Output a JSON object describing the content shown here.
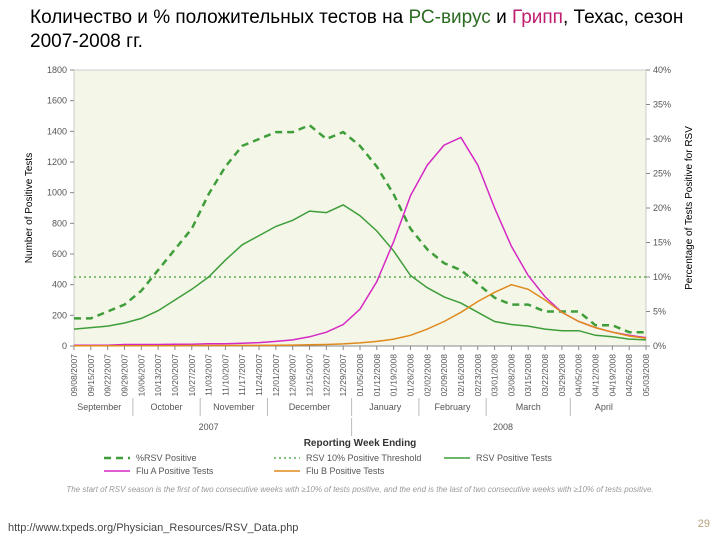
{
  "title_prefix": "Количество и % положительных  тестов на ",
  "title_rsv": "РС-вирус",
  "title_and": " и ",
  "title_flu": "Грипп",
  "title_suffix": ", Техас, сезон 2007-2008 гг.",
  "chart": {
    "type": "line",
    "background_color": "#f4f6e8",
    "plot_border_color": "#cccccc",
    "grid_color": "#dddddd",
    "axis_color": "#888888",
    "y_left": {
      "label": "Number of Positive Tests",
      "min": 0,
      "max": 1800,
      "step": 200,
      "label_fontsize": 10
    },
    "y_right": {
      "label": "Percentage of Tests Positive for RSV",
      "min": 0,
      "max": 40,
      "step": 5,
      "suffix": "%",
      "label_fontsize": 10
    },
    "x_dates": [
      "09/08/2007",
      "09/15/2007",
      "09/22/2007",
      "09/29/2007",
      "10/06/2007",
      "10/13/2007",
      "10/20/2007",
      "10/27/2007",
      "11/03/2007",
      "11/10/2007",
      "11/17/2007",
      "11/24/2007",
      "12/01/2007",
      "12/08/2007",
      "12/15/2007",
      "12/22/2007",
      "12/29/2007",
      "01/05/2008",
      "01/12/2008",
      "01/19/2008",
      "01/26/2008",
      "02/02/2008",
      "02/09/2008",
      "02/16/2008",
      "02/23/2008",
      "03/01/2008",
      "03/08/2008",
      "03/15/2008",
      "03/22/2008",
      "03/29/2008",
      "04/05/2008",
      "04/12/2008",
      "04/19/2008",
      "04/26/2008",
      "05/03/2008"
    ],
    "months": [
      {
        "label": "September",
        "span": [
          0,
          3
        ]
      },
      {
        "label": "October",
        "span": [
          4,
          7
        ]
      },
      {
        "label": "November",
        "span": [
          8,
          11
        ]
      },
      {
        "label": "December",
        "span": [
          12,
          16
        ]
      },
      {
        "label": "January",
        "span": [
          17,
          20
        ]
      },
      {
        "label": "February",
        "span": [
          21,
          24
        ]
      },
      {
        "label": "March",
        "span": [
          25,
          29
        ]
      },
      {
        "label": "April",
        "span": [
          30,
          33
        ]
      }
    ],
    "years": [
      {
        "label": "2007",
        "span": [
          0,
          16
        ]
      },
      {
        "label": "2008",
        "span": [
          17,
          34
        ]
      }
    ],
    "x_axis_label": "Reporting Week Ending",
    "threshold": {
      "value_pct": 10,
      "label": "RSV 10% Positive Threshold",
      "color": "#3f9e3a",
      "dash": "2,3"
    },
    "series": [
      {
        "id": "pct_rsv",
        "label": "%RSV Positive",
        "axis": "right",
        "color": "#3f9e3a",
        "width": 2.5,
        "dash": "7,5",
        "values_pct": [
          4,
          4,
          5,
          6,
          8,
          11,
          14,
          17,
          22,
          26,
          29,
          30,
          31,
          31,
          32,
          30,
          31,
          29,
          26,
          22,
          17,
          14,
          12,
          11,
          9,
          7,
          6,
          6,
          5,
          5,
          5,
          3,
          3,
          2,
          2
        ]
      },
      {
        "id": "rsv_pos",
        "label": "RSV Positive Tests",
        "axis": "left",
        "color": "#3f9e3a",
        "width": 1.5,
        "dash": null,
        "values": [
          110,
          120,
          130,
          150,
          180,
          230,
          300,
          370,
          450,
          560,
          660,
          720,
          780,
          820,
          880,
          870,
          920,
          850,
          750,
          620,
          460,
          380,
          320,
          280,
          220,
          160,
          140,
          130,
          110,
          100,
          100,
          70,
          60,
          45,
          40
        ]
      },
      {
        "id": "flu_a",
        "label": "Flu A Positive Tests",
        "axis": "left",
        "color": "#d528c4",
        "width": 1.5,
        "dash": null,
        "values": [
          5,
          5,
          5,
          10,
          10,
          10,
          12,
          12,
          15,
          15,
          18,
          22,
          30,
          40,
          60,
          90,
          140,
          240,
          420,
          680,
          980,
          1180,
          1310,
          1360,
          1180,
          900,
          650,
          460,
          320,
          220,
          160,
          120,
          90,
          70,
          55
        ]
      },
      {
        "id": "flu_b",
        "label": "Flu B Positive Tests",
        "axis": "left",
        "color": "#e08a1c",
        "width": 1.5,
        "dash": null,
        "values": [
          2,
          2,
          2,
          2,
          2,
          2,
          2,
          3,
          3,
          3,
          4,
          4,
          5,
          6,
          8,
          10,
          14,
          20,
          30,
          45,
          70,
          110,
          160,
          220,
          290,
          350,
          400,
          370,
          300,
          220,
          160,
          120,
          90,
          65,
          50
        ]
      }
    ],
    "legend": [
      {
        "series": "pct_rsv"
      },
      {
        "series": "threshold"
      },
      {
        "series": "rsv_pos"
      },
      {
        "series": "flu_a"
      },
      {
        "series": "flu_b"
      }
    ],
    "footnote": "The start of RSV season is the first of two consecutive weeks with ≥10% of tests positive, and the end is the last of two consecutive weeks with ≥10% of tests positive."
  },
  "source": "http://www.txpeds.org/Physician_Resources/RSV_Data.php",
  "slide_number": "29"
}
